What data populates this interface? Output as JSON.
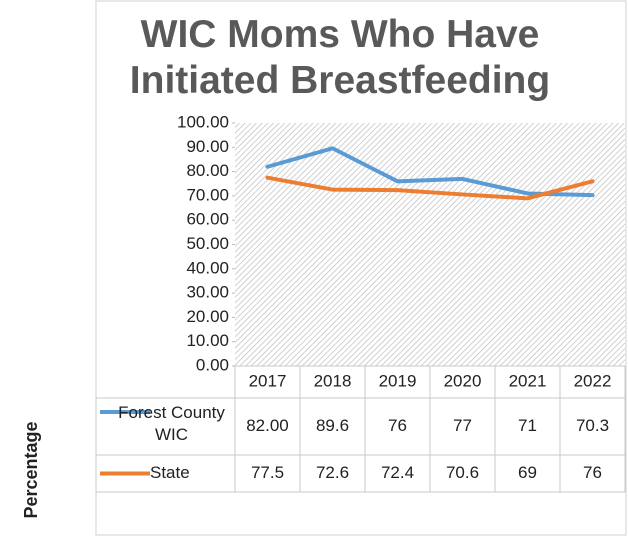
{
  "chart_data": {
    "type": "line",
    "title": "WIC Moms Who Have Initiated Breastfeeding",
    "y_label": "Percentage",
    "categories": [
      "2017",
      "2018",
      "2019",
      "2020",
      "2021",
      "2022"
    ],
    "series": [
      {
        "name": "Forest County WIC",
        "color": "#5b9bd5",
        "values": [
          82,
          89.6,
          76,
          77,
          71,
          70.3
        ],
        "value_labels": [
          "82.00",
          "89.6",
          "76",
          "77",
          "71",
          "70.3"
        ]
      },
      {
        "name": "State",
        "color": "#ed7d31",
        "values": [
          77.5,
          72.6,
          72.4,
          70.6,
          69,
          76
        ]
      }
    ],
    "ylim": [
      0,
      100
    ],
    "yticks": [
      {
        "value": 0,
        "label": "0.00"
      },
      {
        "value": 10,
        "label": "10.00"
      },
      {
        "value": 20,
        "label": "20.00"
      },
      {
        "value": 30,
        "label": "30.00"
      },
      {
        "value": 40,
        "label": "40.00"
      },
      {
        "value": 50,
        "label": "50.00"
      },
      {
        "value": 60,
        "label": "60.00"
      },
      {
        "value": 70,
        "label": "70.00"
      },
      {
        "value": 80,
        "label": "80.00"
      },
      {
        "value": 90,
        "label": "90.00"
      },
      {
        "value": 100,
        "label": "100.00"
      }
    ]
  }
}
